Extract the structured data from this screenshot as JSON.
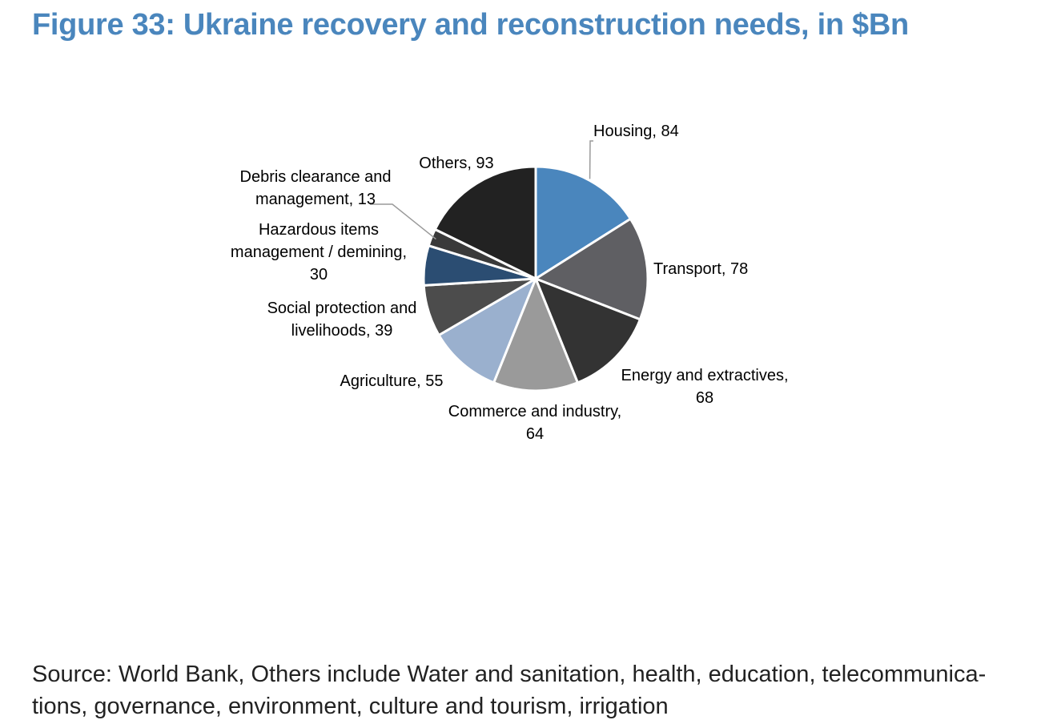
{
  "figure": {
    "title": "Figure 33: Ukraine recovery and reconstruction needs, in $Bn",
    "source": "Source: World Bank, Others include Water and sanitation, health, education, telecommunica-tions, governance, environment, culture and tourism, irrigation"
  },
  "chart_data": {
    "type": "pie",
    "title": "Figure 33: Ukraine recovery and reconstruction needs, in $Bn",
    "unit": "$Bn",
    "slices": [
      {
        "label": "Housing",
        "value": 84,
        "color": "#4a86bd",
        "label_lines": [
          "Housing, 84"
        ]
      },
      {
        "label": "Transport",
        "value": 78,
        "color": "#5f5f63",
        "label_lines": [
          "Transport, 78"
        ]
      },
      {
        "label": "Energy and extractives",
        "value": 68,
        "color": "#333333",
        "label_lines": [
          "Energy and extractives,",
          "68"
        ]
      },
      {
        "label": "Commerce and industry",
        "value": 64,
        "color": "#9a9a9a",
        "label_lines": [
          "Commerce and industry,",
          "64"
        ]
      },
      {
        "label": "Agriculture",
        "value": 55,
        "color": "#9ab0ce",
        "label_lines": [
          "Agriculture, 55"
        ]
      },
      {
        "label": "Social protection and livelihoods",
        "value": 39,
        "color": "#4c4c4c",
        "label_lines": [
          "Social protection and",
          "livelihoods, 39"
        ]
      },
      {
        "label": "Hazardous items management / demining",
        "value": 30,
        "color": "#2b4d72",
        "label_lines": [
          "Hazardous items",
          "management / demining,",
          "30"
        ]
      },
      {
        "label": "Debris clearance and management",
        "value": 13,
        "color": "#3a3a3a",
        "label_lines": [
          "Debris clearance and",
          "management, 13"
        ]
      },
      {
        "label": "Others",
        "value": 93,
        "color": "#222222",
        "label_lines": [
          "Others, 93"
        ]
      }
    ],
    "start_angle_deg": 0,
    "direction": "clockwise",
    "legend": "none",
    "data_labels": "outside, category name and value"
  }
}
